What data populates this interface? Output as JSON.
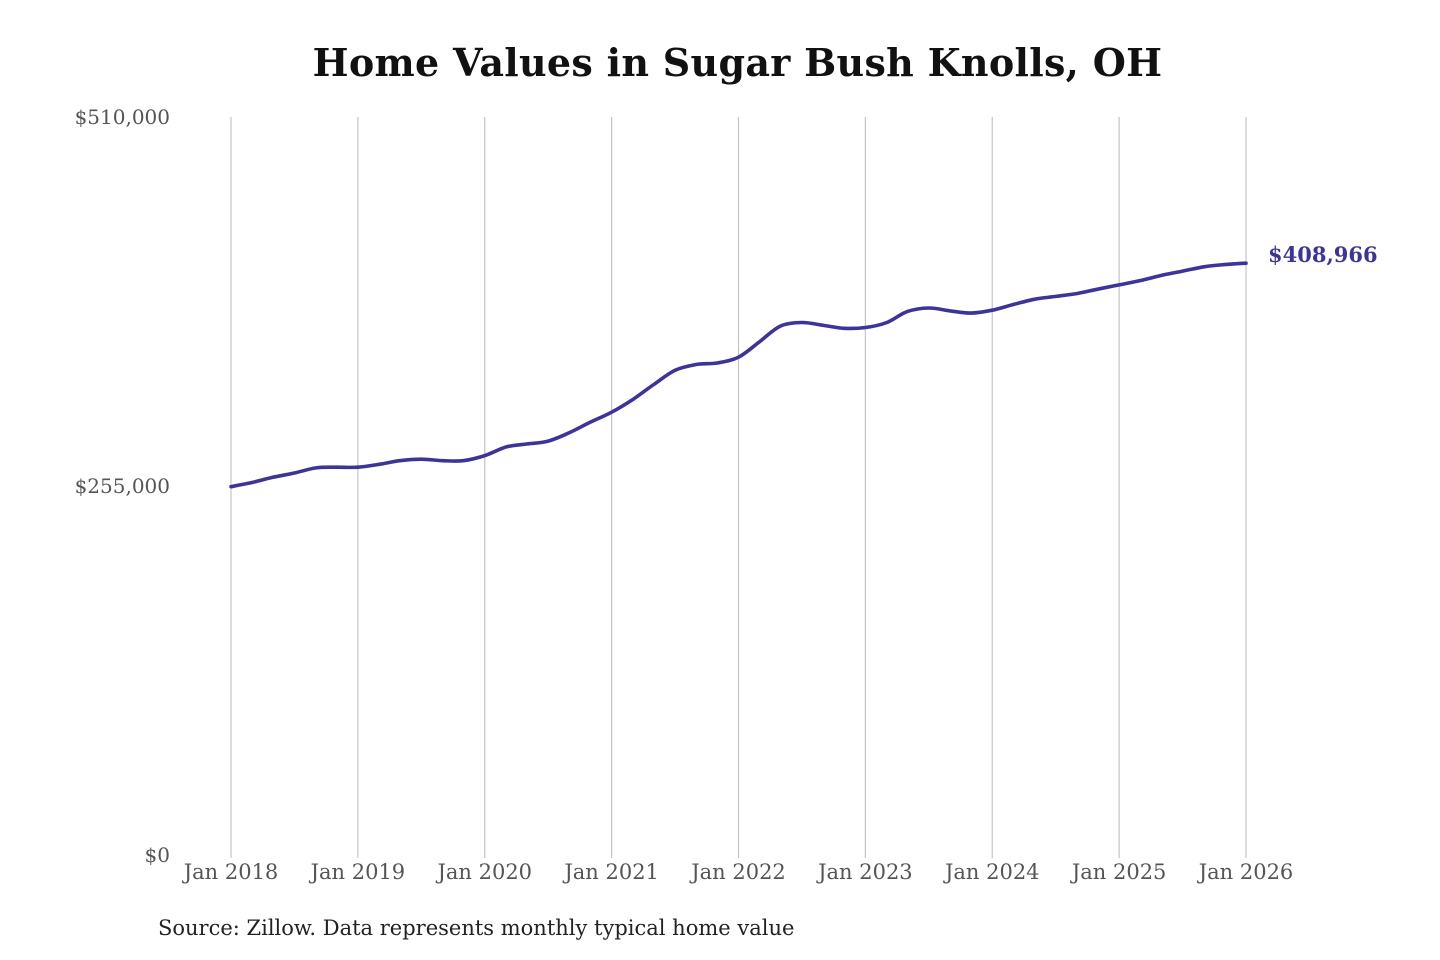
{
  "chart_data": {
    "type": "line",
    "title": "Home Values in Sugar Bush Knolls, OH",
    "xlabel": "",
    "ylabel": "",
    "ylim": [
      0,
      510000
    ],
    "y_ticks": [
      {
        "value": 0,
        "label": "$0"
      },
      {
        "value": 255000,
        "label": "$255,000"
      },
      {
        "value": 510000,
        "label": "$510,000"
      }
    ],
    "x_ticks": [
      {
        "value": 2018.0,
        "label": "Jan 2018"
      },
      {
        "value": 2019.0,
        "label": "Jan 2019"
      },
      {
        "value": 2020.0,
        "label": "Jan 2020"
      },
      {
        "value": 2021.0,
        "label": "Jan 2021"
      },
      {
        "value": 2022.0,
        "label": "Jan 2022"
      },
      {
        "value": 2023.0,
        "label": "Jan 2023"
      },
      {
        "value": 2024.0,
        "label": "Jan 2024"
      },
      {
        "value": 2025.0,
        "label": "Jan 2025"
      },
      {
        "value": 2026.0,
        "label": "Jan 2026"
      }
    ],
    "grid": {
      "vertical": true,
      "horizontal": false
    },
    "line_color": "#3d3499",
    "end_label": "$408,966",
    "series": [
      {
        "points": [
          [
            2018.0,
            254500
          ],
          [
            2018.17,
            257500
          ],
          [
            2018.33,
            261000
          ],
          [
            2018.5,
            264000
          ],
          [
            2018.67,
            267500
          ],
          [
            2018.83,
            268000
          ],
          [
            2019.0,
            268000
          ],
          [
            2019.17,
            270000
          ],
          [
            2019.33,
            272500
          ],
          [
            2019.5,
            273500
          ],
          [
            2019.67,
            272500
          ],
          [
            2019.83,
            272500
          ],
          [
            2020.0,
            276000
          ],
          [
            2020.17,
            282000
          ],
          [
            2020.33,
            284000
          ],
          [
            2020.5,
            286000
          ],
          [
            2020.67,
            292000
          ],
          [
            2020.83,
            299000
          ],
          [
            2021.0,
            306000
          ],
          [
            2021.17,
            315000
          ],
          [
            2021.33,
            325000
          ],
          [
            2021.5,
            335000
          ],
          [
            2021.67,
            339000
          ],
          [
            2021.83,
            340000
          ],
          [
            2022.0,
            344000
          ],
          [
            2022.17,
            355000
          ],
          [
            2022.33,
            365500
          ],
          [
            2022.5,
            368000
          ],
          [
            2022.67,
            366000
          ],
          [
            2022.83,
            364000
          ],
          [
            2023.0,
            364500
          ],
          [
            2023.17,
            368000
          ],
          [
            2023.33,
            375500
          ],
          [
            2023.5,
            378000
          ],
          [
            2023.67,
            376000
          ],
          [
            2023.83,
            374500
          ],
          [
            2024.0,
            376500
          ],
          [
            2024.17,
            380500
          ],
          [
            2024.33,
            384000
          ],
          [
            2024.5,
            386000
          ],
          [
            2024.67,
            388000
          ],
          [
            2024.83,
            391000
          ],
          [
            2025.0,
            394000
          ],
          [
            2025.17,
            397000
          ],
          [
            2025.33,
            400500
          ],
          [
            2025.5,
            403500
          ],
          [
            2025.67,
            406500
          ],
          [
            2025.83,
            408000
          ],
          [
            2026.0,
            408966
          ]
        ]
      }
    ]
  },
  "source_note": "Source: Zillow. Data represents monthly typical home value"
}
